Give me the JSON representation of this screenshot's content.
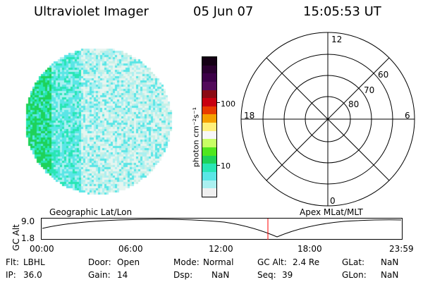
{
  "header": {
    "title": "Ultraviolet Imager",
    "date": "05 Jun 07",
    "time": "15:05:53 UT"
  },
  "colorbar": {
    "label": "photon cm⁻²s⁻¹",
    "ticks": [
      "100",
      "10"
    ],
    "colors": [
      "#140014",
      "#2a0030",
      "#3c0048",
      "#520a5a",
      "#8a0a14",
      "#c80010",
      "#e83c00",
      "#f5a000",
      "#fff07a",
      "#f7f7f7",
      "#c8ff64",
      "#50e61e",
      "#1ed25a",
      "#28e6b4",
      "#5ae6e6",
      "#aaf0f0",
      "#f0f0f0"
    ]
  },
  "polar": {
    "labels": {
      "top": "12",
      "left": "18",
      "right": "6",
      "bottom": "0"
    },
    "rings": [
      "60",
      "70",
      "80"
    ]
  },
  "timeline": {
    "left_title": "Geographic Lat/Lon",
    "right_title": "Apex MLat/MLT",
    "ylabel": "GC Alt",
    "yticks": [
      "9.0",
      "1.8"
    ],
    "xticks": [
      "00:00",
      "06:00",
      "12:00",
      "18:00",
      "23:59"
    ],
    "marker_color": "#ff0000"
  },
  "info": [
    {
      "label": "Flt:",
      "value": "LBHL"
    },
    {
      "label": "Door:",
      "value": "Open"
    },
    {
      "label": "Mode:",
      "value": "Normal"
    },
    {
      "label": "GC Alt:",
      "value": "2.4 Re"
    },
    {
      "label": "GLat:",
      "value": "NaN"
    },
    {
      "label": "IP:",
      "value": "36.0"
    },
    {
      "label": "Gain:",
      "value": "14"
    },
    {
      "label": "Dsp:",
      "value": "NaN"
    },
    {
      "label": "Seq:",
      "value": "39"
    },
    {
      "label": "GLon:",
      "value": "NaN"
    }
  ],
  "image_palette": [
    "#1ed25a",
    "#28e6b4",
    "#5ae6e6",
    "#aaf0f0",
    "#e6f5f0",
    "#c8f0e6"
  ]
}
